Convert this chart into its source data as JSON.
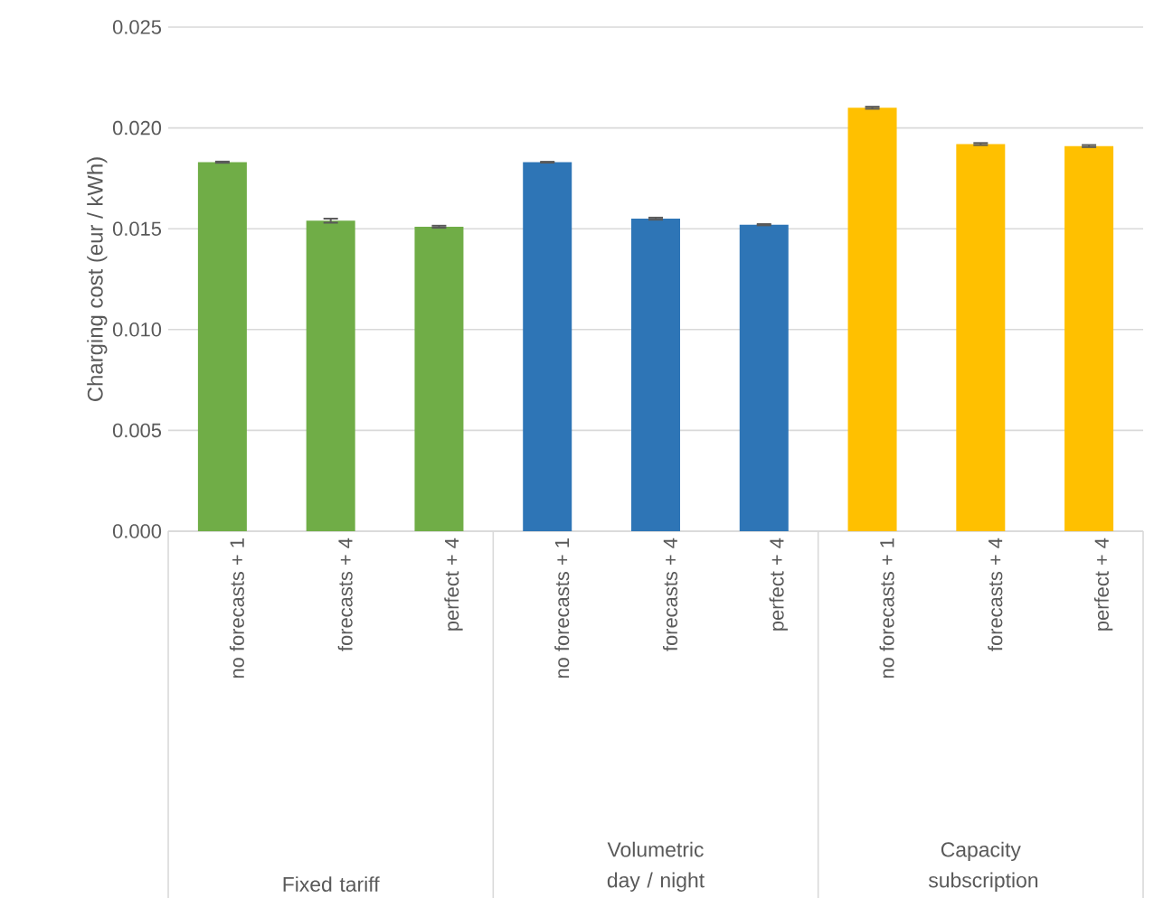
{
  "chart_data": {
    "type": "bar",
    "ylabel": "Charging cost (eur / kWh)",
    "categories": [
      "no forecasts + 1",
      "forecasts + 4",
      "perfect + 4",
      "no forecasts + 1",
      "forecasts + 4",
      "perfect + 4",
      "no forecasts + 1",
      "forecasts + 4",
      "perfect + 4"
    ],
    "values": [
      0.0183,
      0.0154,
      0.0151,
      0.0183,
      0.0155,
      0.0152,
      0.021,
      0.0192,
      0.0191
    ],
    "errors": [
      3e-05,
      0.0001,
      5e-05,
      2e-05,
      5e-05,
      3e-05,
      5e-05,
      5e-05,
      5e-05
    ],
    "colors": [
      "#70ad47",
      "#70ad47",
      "#70ad47",
      "#2e75b6",
      "#2e75b6",
      "#2e75b6",
      "#ffc000",
      "#ffc000",
      "#ffc000"
    ],
    "annotations": [
      "Fixed tariff",
      "Volumetric day / night",
      "Capacity subscription"
    ],
    "ylim": [
      0,
      0.025
    ],
    "yticks": [
      {
        "value": 0,
        "label": "0.000"
      },
      {
        "value": 0.005,
        "label": "0.005"
      },
      {
        "value": 0.01,
        "label": "0.010"
      },
      {
        "value": 0.015,
        "label": "0.015"
      },
      {
        "value": 0.02,
        "label": "0.020"
      },
      {
        "value": 0.025,
        "label": "0.025"
      }
    ],
    "grid": "y"
  }
}
